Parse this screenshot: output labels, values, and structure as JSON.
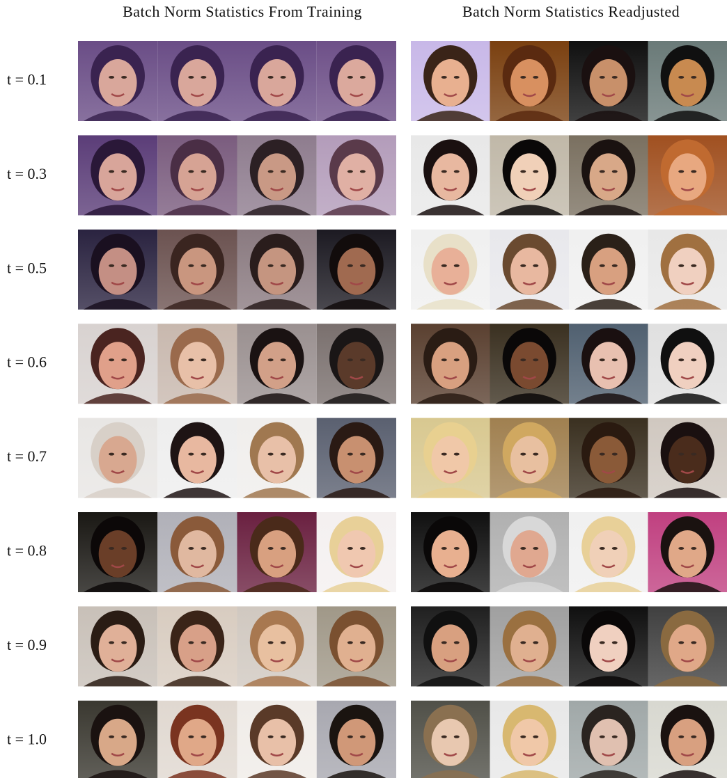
{
  "headers": [
    "Batch Norm Statistics From Training",
    "Batch Norm Statistics Readjusted"
  ],
  "rows": [
    {
      "label": "t = 0.1"
    },
    {
      "label": "t = 0.3"
    },
    {
      "label": "t = 0.5"
    },
    {
      "label": "t = 0.6"
    },
    {
      "label": "t = 0.7"
    },
    {
      "label": "t = 0.8"
    },
    {
      "label": "t = 0.9"
    },
    {
      "label": "t = 1.0"
    }
  ]
}
